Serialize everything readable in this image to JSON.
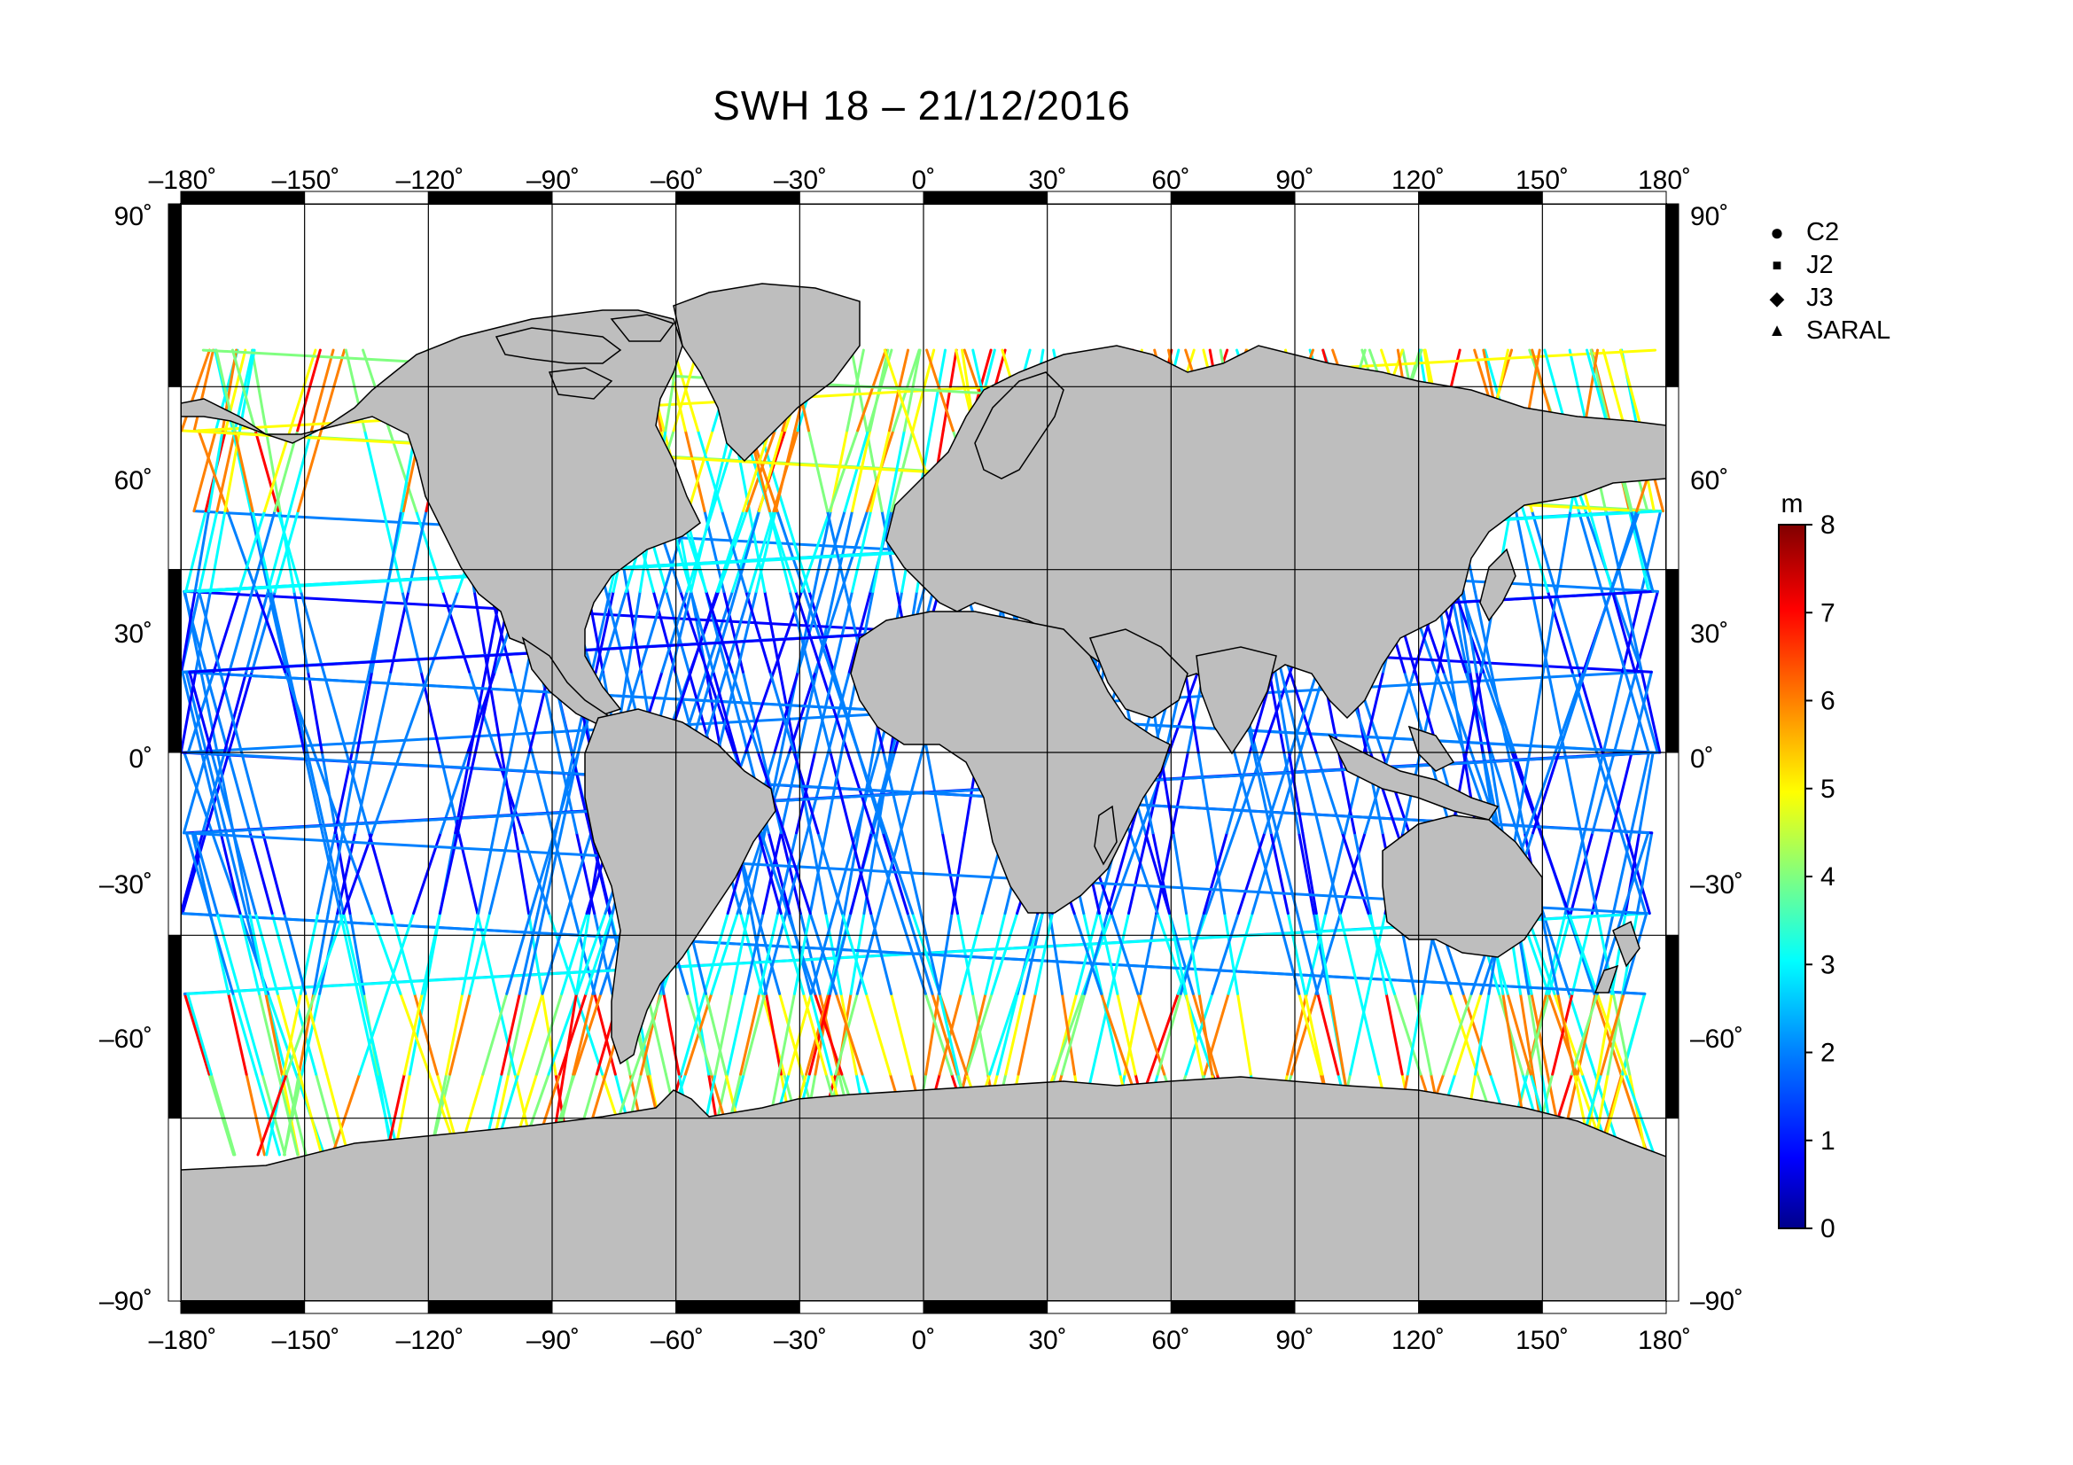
{
  "title": "SWH 18 – 21/12/2016",
  "axes": {
    "lon_ticks": [
      "–180˚",
      "–150˚",
      "–120˚",
      "–90˚",
      "–60˚",
      "–30˚",
      "0˚",
      "30˚",
      "60˚",
      "90˚",
      "120˚",
      "150˚",
      "180˚"
    ],
    "lat_ticks": [
      "90˚",
      "60˚",
      "30˚",
      "0˚",
      "–30˚",
      "–60˚",
      "–90˚"
    ]
  },
  "legend": {
    "items": [
      {
        "label": "C2",
        "symbol": "●"
      },
      {
        "label": "J2",
        "symbol": "■"
      },
      {
        "label": "J3",
        "symbol": "◆"
      },
      {
        "label": "SARAL",
        "symbol": "▲"
      }
    ]
  },
  "colorbar": {
    "unit": "m",
    "ticks": [
      "8",
      "7",
      "6",
      "5",
      "4",
      "3",
      "2",
      "1",
      "0"
    ],
    "range": [
      0,
      8
    ]
  },
  "chart_data": {
    "type": "map",
    "projection": "equirectangular",
    "variable": "significant wave height",
    "xlim": [
      -180,
      180
    ],
    "ylim": [
      -90,
      90
    ],
    "grid": true,
    "colors": {
      "land": "#bebebe",
      "ocean": "#ffffff",
      "colormap": [
        "#00008b",
        "#0000ff",
        "#0080ff",
        "#00ffff",
        "#80ff80",
        "#ffff00",
        "#ff8000",
        "#ff0000",
        "#800000"
      ]
    }
  }
}
